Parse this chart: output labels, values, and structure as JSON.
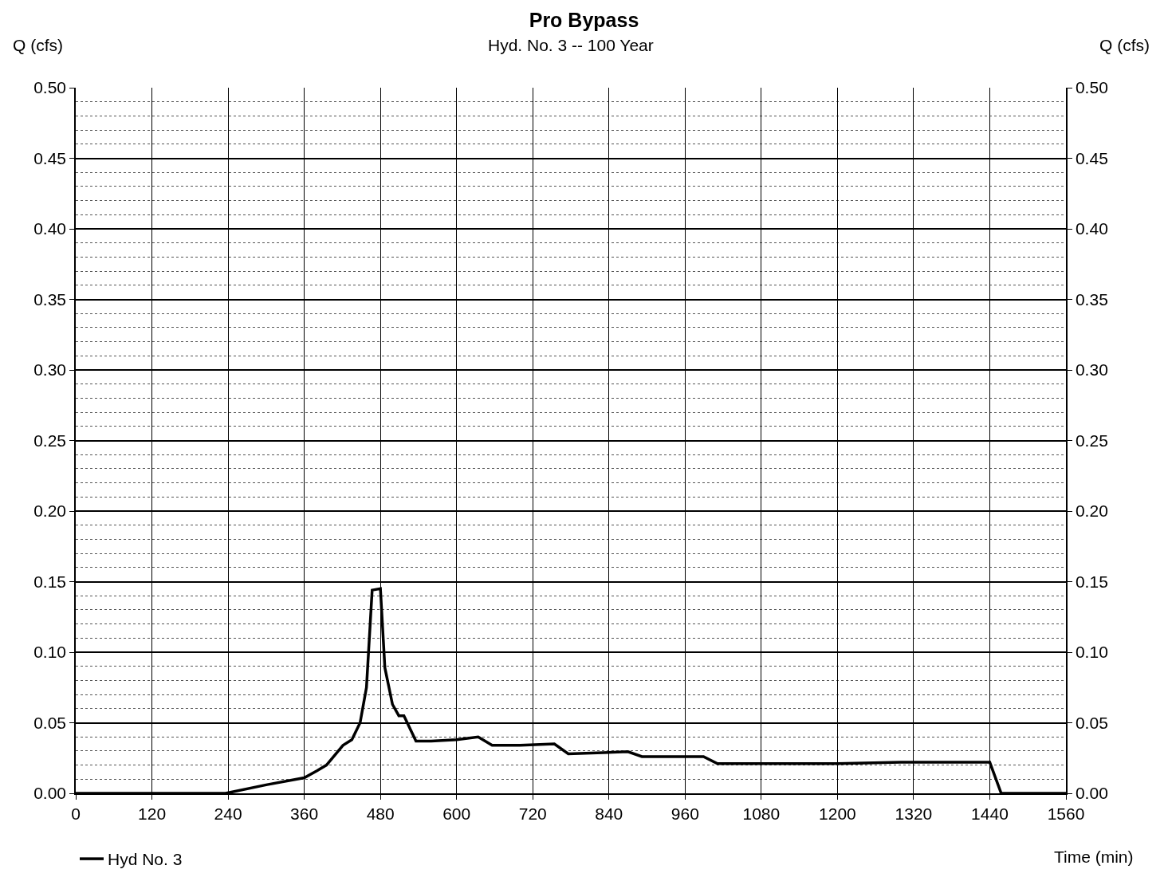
{
  "chart_data": {
    "type": "line",
    "title": "Pro Bypass",
    "subtitle": "Hyd. No. 3 -- 100 Year",
    "xlabel": "Time (min)",
    "ylabel": "Q (cfs)",
    "y2label": "Q (cfs)",
    "x": [
      0,
      236,
      300,
      360,
      380,
      395,
      421,
      435,
      448,
      458,
      467,
      480,
      487,
      499,
      509,
      517,
      536,
      560,
      600,
      634,
      656,
      700,
      754,
      776,
      870,
      892,
      989,
      1011,
      1100,
      1200,
      1300,
      1440,
      1458,
      1560
    ],
    "series": [
      {
        "name": "Hyd No. 3",
        "color": "#000000",
        "values": [
          0,
          0,
          0.006,
          0.011,
          0.016,
          0.02,
          0.034,
          0.038,
          0.05,
          0.075,
          0.144,
          0.145,
          0.089,
          0.063,
          0.055,
          0.055,
          0.037,
          0.037,
          0.038,
          0.04,
          0.034,
          0.034,
          0.035,
          0.028,
          0.0295,
          0.026,
          0.026,
          0.021,
          0.021,
          0.021,
          0.022,
          0.022,
          0,
          0
        ]
      }
    ],
    "xlim": [
      0,
      1560
    ],
    "xticks": [
      0,
      120,
      240,
      360,
      480,
      600,
      720,
      840,
      960,
      1080,
      1200,
      1320,
      1440,
      1560
    ],
    "ylim": [
      0,
      0.5
    ],
    "yticks": [
      {
        "value": 0,
        "label": "0.00"
      },
      {
        "value": 0.05,
        "label": "0.05"
      },
      {
        "value": 0.1,
        "label": "0.10"
      },
      {
        "value": 0.15,
        "label": "0.15"
      },
      {
        "value": 0.2,
        "label": "0.20"
      },
      {
        "value": 0.25,
        "label": "0.25"
      },
      {
        "value": 0.3,
        "label": "0.30"
      },
      {
        "value": 0.35,
        "label": "0.35"
      },
      {
        "value": 0.4,
        "label": "0.40"
      },
      {
        "value": 0.45,
        "label": "0.45"
      },
      {
        "value": 0.5,
        "label": "0.50"
      }
    ],
    "y2lim": [
      0,
      0.5
    ],
    "y2ticks": [
      {
        "value": 0,
        "label": "0.00"
      },
      {
        "value": 0.05,
        "label": "0.05"
      },
      {
        "value": 0.1,
        "label": "0.10"
      },
      {
        "value": 0.15,
        "label": "0.15"
      },
      {
        "value": 0.2,
        "label": "0.20"
      },
      {
        "value": 0.25,
        "label": "0.25"
      },
      {
        "value": 0.3,
        "label": "0.30"
      },
      {
        "value": 0.35,
        "label": "0.35"
      },
      {
        "value": 0.4,
        "label": "0.40"
      },
      {
        "value": 0.45,
        "label": "0.45"
      },
      {
        "value": 0.5,
        "label": "0.50"
      }
    ],
    "grid": true,
    "legend": "bottom left",
    "marker": "none",
    "line_style": "solid"
  }
}
